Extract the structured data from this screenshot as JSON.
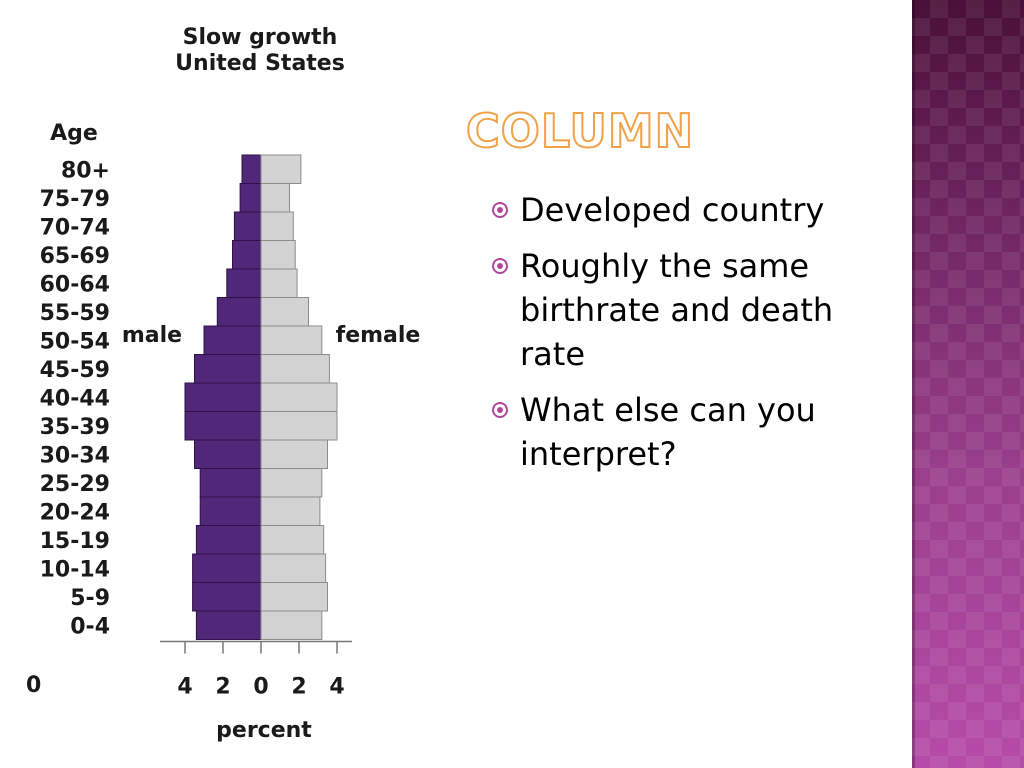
{
  "slide": {
    "title": "Column",
    "bullets": [
      {
        "text": "Developed country"
      },
      {
        "text": "Roughly the same birthrate and death rate"
      },
      {
        "text": "What else can you interpret?"
      }
    ],
    "accent_color": "#b0479f",
    "title_color": "#f0a24a",
    "band_color": "#7b2d6d"
  },
  "chart_data": {
    "type": "bar",
    "orientation": "horizontal-population-pyramid",
    "title": "Slow growth\nUnited States",
    "title_lines": [
      "Slow growth",
      "United States"
    ],
    "ylabel": "Age",
    "xlabel": "percent",
    "male_label": "male",
    "female_label": "female",
    "x_ticks": [
      {
        "value": -4,
        "label": "4"
      },
      {
        "value": -2,
        "label": "2"
      },
      {
        "value": 0,
        "label": "0"
      },
      {
        "value": 2,
        "label": "2"
      },
      {
        "value": 4,
        "label": "4"
      }
    ],
    "cut_off_tick_label": "0",
    "xlim": [
      -5.2,
      4.8
    ],
    "categories": [
      "80+",
      "75-79",
      "70-74",
      "65-69",
      "60-64",
      "55-59",
      "50-54",
      "45-59",
      "40-44",
      "35-39",
      "30-34",
      "25-29",
      "20-24",
      "15-19",
      "10-14",
      "5-9",
      "0-4"
    ],
    "series": [
      {
        "name": "male",
        "color": "#51277a",
        "values": [
          1.0,
          1.1,
          1.4,
          1.5,
          1.8,
          2.3,
          3.0,
          3.5,
          4.0,
          4.0,
          3.5,
          3.2,
          3.2,
          3.4,
          3.6,
          3.6,
          3.4
        ]
      },
      {
        "name": "female",
        "color": "#d3d3d3",
        "values": [
          2.1,
          1.5,
          1.7,
          1.8,
          1.9,
          2.5,
          3.2,
          3.6,
          4.0,
          4.0,
          3.5,
          3.2,
          3.1,
          3.3,
          3.4,
          3.5,
          3.2
        ]
      }
    ]
  }
}
